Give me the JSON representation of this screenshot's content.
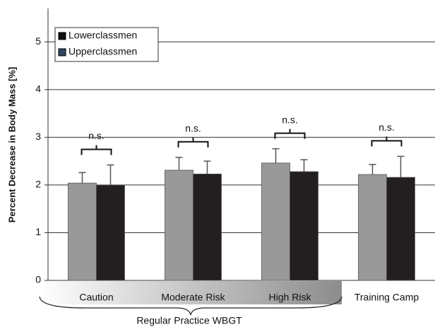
{
  "chart_data": {
    "type": "bar",
    "y_label": "Percent Decrease in Body Mass [%]",
    "categories": [
      "Caution",
      "Moderate Risk",
      "High Risk",
      "Training Camp"
    ],
    "group_label": "Regular Practice WBGT",
    "series": [
      {
        "name": "Upperclassmen",
        "color": "#999999",
        "legend_color": "#2f4560",
        "values": [
          2.04,
          2.31,
          2.46,
          2.22
        ],
        "errors": [
          0.22,
          0.27,
          0.3,
          0.21
        ]
      },
      {
        "name": "Lowerclassmen",
        "color": "#231f20",
        "legend_color": "#111111",
        "values": [
          2.0,
          2.23,
          2.28,
          2.16
        ],
        "errors": [
          0.42,
          0.27,
          0.25,
          0.44
        ]
      }
    ],
    "annotations": [
      "n.s.",
      "n.s.",
      "n.s.",
      "n.s."
    ],
    "ylim": [
      0,
      5.7
    ],
    "yticks": [
      0,
      1,
      2,
      3,
      4,
      5
    ],
    "grid": true
  }
}
